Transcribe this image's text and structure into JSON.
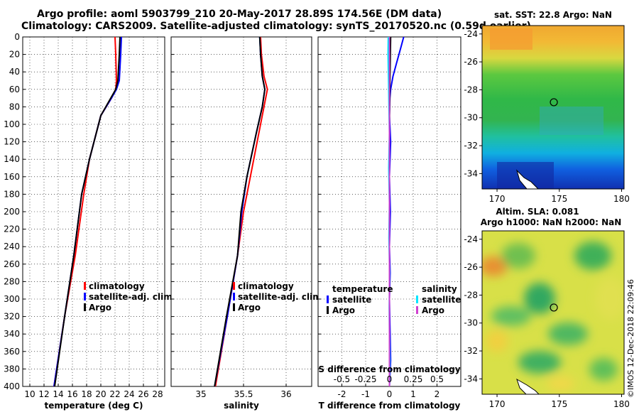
{
  "title": {
    "line1": "Argo profile: aoml 5903799_210 20-May-2017 28.89S 174.56E (DM data)",
    "line2": "Climatology: CARS2009. Satellite-adjusted climatology: synTS_20170520.nc (0.59d earlier)"
  },
  "stamp": "©IMOS 12-Dec-2018 22:09:46",
  "colors": {
    "climatology": "#ff0000",
    "satellite": "#0000ff",
    "argo": "#000000",
    "sat_diff": "#00e5ff",
    "argo_diff": "#d040d0"
  },
  "chart_data": [
    {
      "type": "line",
      "name": "temperature",
      "xlabel": "temperature (deg C)",
      "ylabel": "",
      "xlim": [
        9,
        29
      ],
      "ylim": [
        400,
        0
      ],
      "xticks": [
        10,
        12,
        14,
        16,
        18,
        20,
        22,
        24,
        26,
        28
      ],
      "yticks": [
        0,
        20,
        40,
        60,
        80,
        100,
        120,
        140,
        160,
        180,
        200,
        220,
        240,
        260,
        280,
        300,
        320,
        340,
        360,
        380,
        400
      ],
      "grid": true,
      "legend": [
        "climatology",
        "satellite-adj. clim.",
        "Argo"
      ],
      "series": [
        {
          "name": "climatology",
          "color": "#ff0000",
          "x": [
            22.0,
            22.1,
            22.2,
            22.1,
            21.5,
            20.0,
            18.4,
            17.6,
            16.4,
            14.9,
            13.4
          ],
          "y": [
            0,
            20,
            50,
            60,
            70,
            90,
            140,
            180,
            250,
            320,
            400
          ]
        },
        {
          "name": "satellite-adj. clim.",
          "color": "#0000ff",
          "x": [
            22.9,
            22.8,
            22.6,
            22.2,
            21.5,
            20.0,
            18.4,
            17.3,
            16.2,
            14.9,
            13.4
          ],
          "y": [
            0,
            20,
            50,
            60,
            70,
            90,
            140,
            180,
            250,
            320,
            400
          ]
        },
        {
          "name": "Argo",
          "color": "#000000",
          "x": [
            22.7,
            22.6,
            22.4,
            22.1,
            21.4,
            20.0,
            18.4,
            17.3,
            16.2,
            14.9,
            13.5
          ],
          "y": [
            0,
            20,
            50,
            60,
            70,
            90,
            140,
            180,
            250,
            320,
            400
          ]
        }
      ]
    },
    {
      "type": "line",
      "name": "salinity",
      "xlabel": "salinity",
      "ylabel": "",
      "xlim": [
        34.65,
        36.3
      ],
      "ylim": [
        400,
        0
      ],
      "xticks": [
        35,
        35.5,
        36
      ],
      "xticklabels": [
        "35",
        "35.5",
        "36"
      ],
      "grid": true,
      "legend": [
        "climatology",
        "satellite-adj. clim.",
        "Argo"
      ],
      "series": [
        {
          "name": "climatology",
          "color": "#ff0000",
          "x": [
            35.7,
            35.71,
            35.74,
            35.78,
            35.74,
            35.68,
            35.58,
            35.5,
            35.43,
            35.31,
            35.17
          ],
          "y": [
            0,
            20,
            45,
            60,
            80,
            110,
            160,
            200,
            250,
            320,
            400
          ]
        },
        {
          "name": "satellite-adj. clim.",
          "color": "#0000ff",
          "x": [
            35.69,
            35.7,
            35.72,
            35.75,
            35.72,
            35.65,
            35.54,
            35.48,
            35.43,
            35.31,
            35.16
          ],
          "y": [
            0,
            20,
            45,
            60,
            80,
            110,
            160,
            200,
            250,
            320,
            400
          ]
        },
        {
          "name": "Argo",
          "color": "#000000",
          "x": [
            35.69,
            35.7,
            35.72,
            35.75,
            35.72,
            35.65,
            35.54,
            35.47,
            35.43,
            35.3,
            35.16
          ],
          "y": [
            0,
            20,
            45,
            60,
            80,
            110,
            160,
            200,
            250,
            320,
            400
          ]
        }
      ]
    },
    {
      "type": "line",
      "name": "difference",
      "xlabel": "T difference from climatology",
      "xlabel_top": "S difference from climatology",
      "xlim": [
        -3,
        3
      ],
      "ylim": [
        400,
        0
      ],
      "xticks": [
        -2,
        -1,
        0,
        1,
        2
      ],
      "xticklabels": [
        "-2",
        "-1",
        "0",
        "1",
        "2"
      ],
      "xticks_top": [
        -0.5,
        -0.25,
        0,
        0.25,
        0.5
      ],
      "xticklabels_top": [
        "-0.5",
        "-0.25",
        "0",
        "0.25",
        "0.5"
      ],
      "grid": true,
      "legend_temperature": {
        "title": "temperature",
        "items": [
          "satellite",
          "Argo"
        ]
      },
      "legend_salinity": {
        "title": "salinity",
        "items": [
          "satellite",
          "Argo"
        ]
      },
      "series": [
        {
          "name": "T satellite",
          "color": "#0000ff",
          "x": [
            0.6,
            0.5,
            0.3,
            0.15,
            0.05,
            0.02,
            0.0,
            0.05,
            0.0,
            0.04,
            0.0,
            0.03,
            0.0,
            0.02,
            0.05,
            0.0
          ],
          "y": [
            0,
            10,
            30,
            45,
            60,
            70,
            90,
            120,
            160,
            200,
            240,
            270,
            300,
            330,
            370,
            400
          ]
        },
        {
          "name": "T Argo",
          "color": "#000000",
          "x": [
            0.05,
            0.02,
            0.0,
            0.0,
            0.0,
            0.0,
            0.0,
            0.0
          ],
          "y": [
            0,
            50,
            100,
            150,
            200,
            260,
            330,
            400
          ]
        },
        {
          "name": "S satellite",
          "color": "#00e5ff",
          "x": [
            -0.05,
            -0.06,
            -0.04,
            -0.02,
            0.0,
            -0.03,
            0.0,
            -0.02,
            0.01,
            -0.01,
            0.0,
            0.02,
            0.0
          ],
          "y": [
            0,
            20,
            50,
            80,
            110,
            150,
            190,
            230,
            270,
            310,
            340,
            370,
            400
          ]
        },
        {
          "name": "S Argo",
          "color": "#d040d0",
          "x": [
            0.0,
            0.0,
            0.0
          ],
          "y": [
            0,
            200,
            400
          ]
        }
      ]
    },
    {
      "type": "heatmap",
      "name": "sst_map",
      "title": "sat. SST: 22.8 Argo: NaN",
      "xlim": [
        168.8,
        180.2
      ],
      "ylim": [
        -35.1,
        -23.4
      ],
      "xticks": [
        170,
        175,
        180
      ],
      "yticks": [
        -24,
        -26,
        -28,
        -30,
        -32,
        -34
      ],
      "marker": {
        "lon": 174.56,
        "lat": -28.89
      }
    },
    {
      "type": "heatmap",
      "name": "sla_map",
      "title": "Altim. SLA: 0.081",
      "subtitle": "Argo h1000: NaN h2000: NaN",
      "xlim": [
        168.8,
        180.2
      ],
      "ylim": [
        -35.1,
        -23.4
      ],
      "xticks": [
        170,
        175,
        180
      ],
      "yticks": [
        -24,
        -26,
        -28,
        -30,
        -32,
        -34
      ],
      "marker": {
        "lon": 174.56,
        "lat": -28.89
      }
    }
  ]
}
